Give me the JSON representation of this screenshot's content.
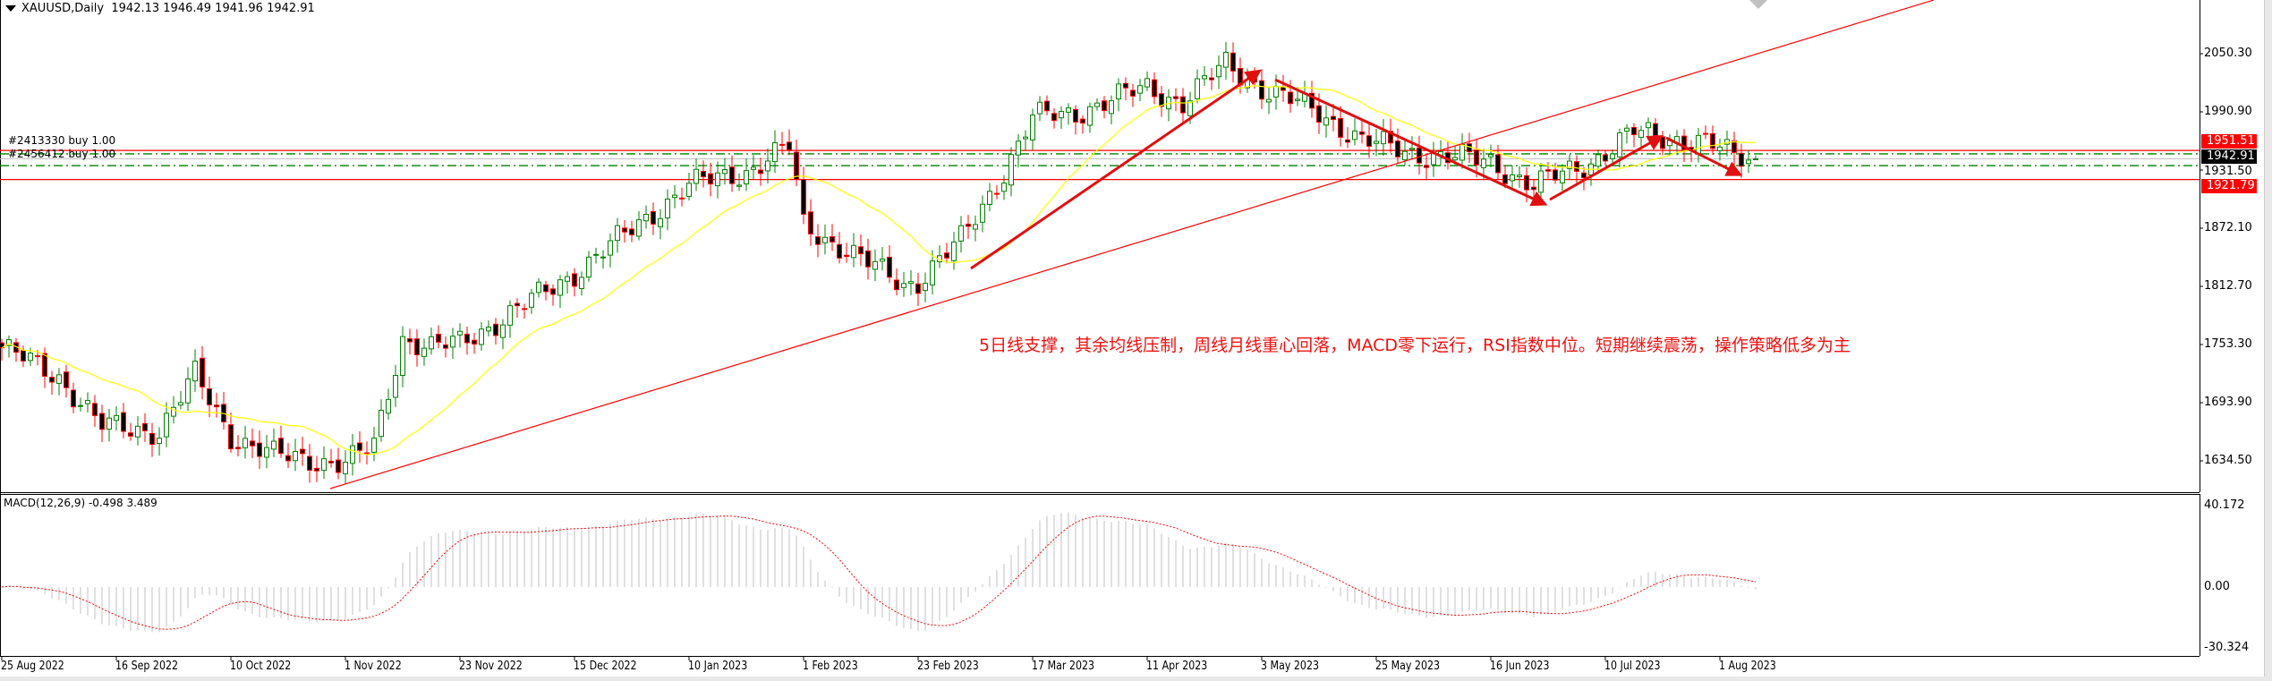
{
  "header": {
    "symbol_timeframe": "XAUUSD,Daily",
    "ohlc": "1942.13 1946.49 1941.96 1942.91"
  },
  "orders": [
    {
      "label": "#2413330 buy 1.00"
    },
    {
      "label": "#2456412 buy 1.00"
    }
  ],
  "annotation": "5日线支撑，其余均线压制，周线月线重心回落，MACD零下运行，RSI指数中位。短期继续震荡，操作策略低多为主",
  "macd": {
    "label": "MACD(12,26,9) -0.498 3.489",
    "ticks": [
      "40.172",
      "0.00",
      "-30.324"
    ],
    "tick_values": [
      40.172,
      0,
      -30.324
    ]
  },
  "price_axis": {
    "ticks": [
      "2050.30",
      "1990.90",
      "1931.50",
      "1872.10",
      "1812.70",
      "1753.30",
      "1693.90",
      "1634.50"
    ],
    "tick_values": [
      2050.3,
      1990.9,
      1931.5,
      1872.1,
      1812.7,
      1753.3,
      1693.9,
      1634.5
    ],
    "tags": [
      {
        "text": "1951.51",
        "value": 1951.51,
        "color": "#ff0000"
      },
      {
        "text": "1942.91",
        "value": 1942.91,
        "color": "#000000"
      },
      {
        "text": "1921.79",
        "value": 1921.79,
        "color": "#ff0000"
      }
    ]
  },
  "levels": {
    "red": [
      1951.51,
      1921.79
    ],
    "green_dashdot": [
      1948.0,
      1936.0
    ],
    "bid": 1942.91
  },
  "colors": {
    "bull": "#008000",
    "bear": "#ff0000",
    "ma": "#ffff00",
    "trendline": "#ff0000",
    "macd_hist": "#c0c0c0",
    "macd_signal": "#ff0000"
  },
  "chart_data": {
    "type": "candlestick",
    "title": "XAUUSD,Daily",
    "date_ticks": [
      "25 Aug 2022",
      "16 Sep 2022",
      "10 Oct 2022",
      "1 Nov 2022",
      "23 Nov 2022",
      "15 Dec 2022",
      "10 Jan 2023",
      "1 Feb 2023",
      "23 Feb 2023",
      "17 Mar 2023",
      "11 Apr 2023",
      "3 May 2023",
      "25 May 2023",
      "16 Jun 2023",
      "10 Jul 2023",
      "1 Aug 2023"
    ],
    "ylim": [
      1620,
      2080
    ],
    "approx_closes": [
      [
        0,
        1750
      ],
      [
        8,
        1720
      ],
      [
        14,
        1670
      ],
      [
        16,
        1668
      ],
      [
        22,
        1665
      ],
      [
        27,
        1722
      ],
      [
        32,
        1660
      ],
      [
        38,
        1640
      ],
      [
        48,
        1632
      ],
      [
        52,
        1650
      ],
      [
        56,
        1760
      ],
      [
        60,
        1750
      ],
      [
        64,
        1755
      ],
      [
        70,
        1780
      ],
      [
        80,
        1826
      ],
      [
        96,
        1916
      ],
      [
        104,
        1930
      ],
      [
        110,
        1955
      ],
      [
        112,
        1876
      ],
      [
        120,
        1840
      ],
      [
        126,
        1815
      ],
      [
        128,
        1818
      ],
      [
        134,
        1860
      ],
      [
        140,
        1930
      ],
      [
        144,
        1985
      ],
      [
        150,
        1990
      ],
      [
        160,
        2016
      ],
      [
        165,
        2000
      ],
      [
        171,
        2040
      ],
      [
        176,
        2015
      ],
      [
        184,
        1990
      ],
      [
        190,
        1962
      ],
      [
        196,
        1950
      ],
      [
        208,
        1940
      ],
      [
        214,
        1915
      ],
      [
        222,
        1940
      ],
      [
        228,
        1970
      ],
      [
        232,
        1965
      ],
      [
        238,
        1960
      ],
      [
        242,
        1945
      ],
      [
        245,
        1942.91
      ]
    ],
    "last_bar": {
      "open": 1942.13,
      "high": 1946.49,
      "low": 1941.96,
      "close": 1942.91
    }
  }
}
